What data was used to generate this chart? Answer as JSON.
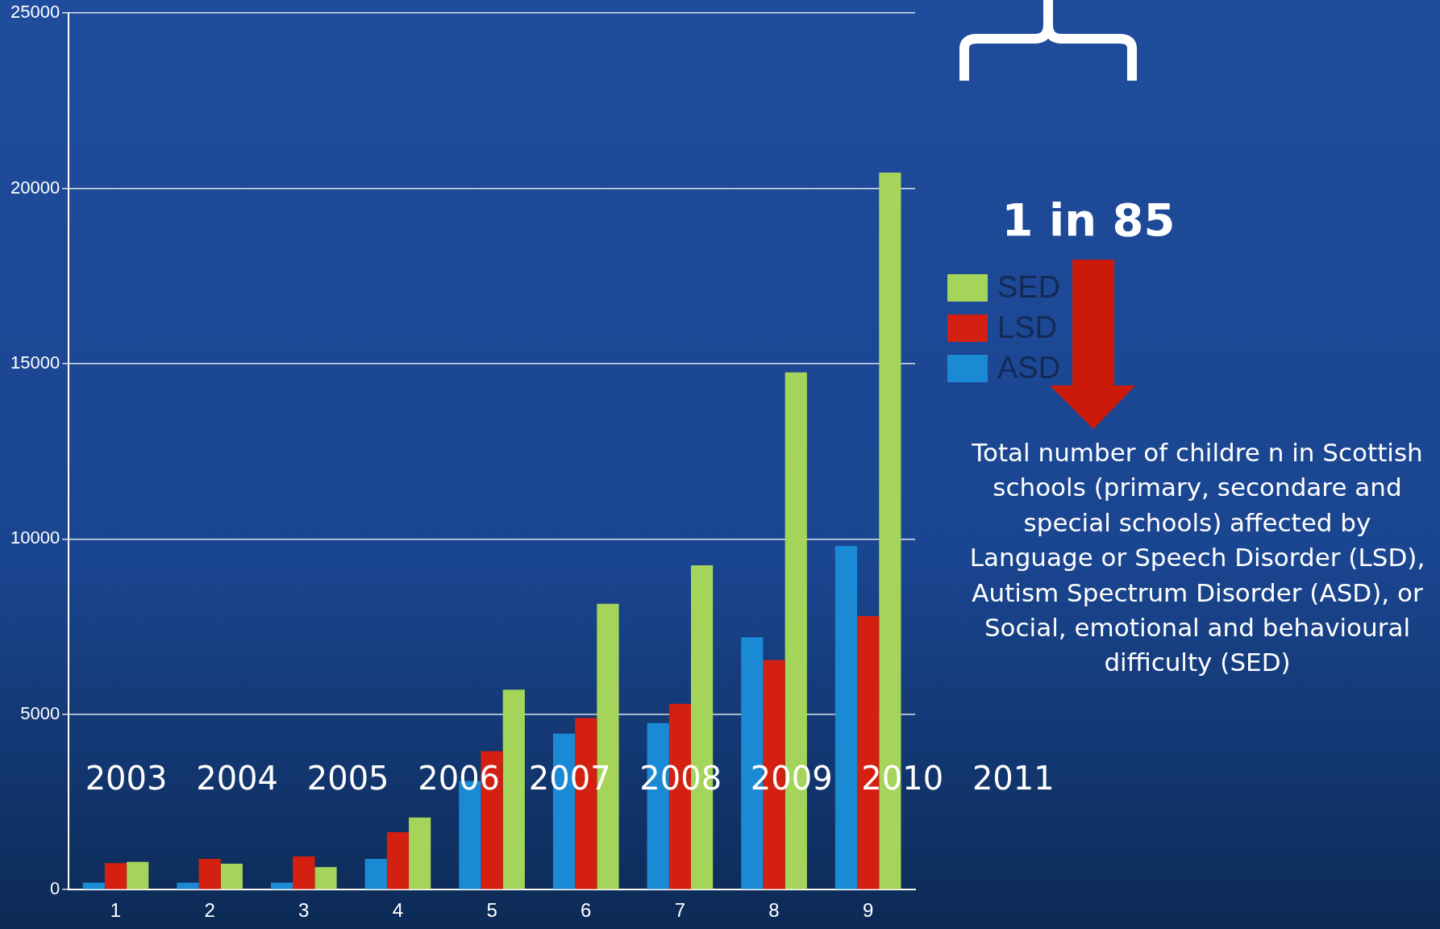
{
  "chart_data": {
    "type": "bar",
    "categories": [
      "1",
      "2",
      "3",
      "4",
      "5",
      "6",
      "7",
      "8",
      "9"
    ],
    "series": [
      {
        "name": "ASD",
        "color": "#1a8ad4",
        "values": [
          200,
          200,
          200,
          880,
          3100,
          4450,
          4750,
          7200,
          9800
        ]
      },
      {
        "name": "LSD",
        "color": "#d42010",
        "values": [
          760,
          880,
          950,
          1640,
          3950,
          4900,
          5300,
          6550,
          7800
        ]
      },
      {
        "name": "SED",
        "color": "#a4d45a",
        "values": [
          790,
          740,
          640,
          2060,
          5700,
          8150,
          9250,
          14750,
          20450
        ]
      }
    ],
    "ylim": [
      0,
      25000
    ],
    "yticks": [
      0,
      5000,
      10000,
      15000,
      20000,
      25000
    ],
    "grid": "y",
    "legend": "right",
    "annotations": [
      "2003",
      "2004",
      "2005",
      "2006",
      "2007",
      "2008",
      "2009",
      "2010",
      "2011",
      "1 in 85",
      "Total number of childre n in Scottish schools (primary, secondare and special schools) affected by Language or Speech Disorder (LSD), Autism Spectrum Disorder (ASD), or Social, emotional and behavioural difficulty (SED)"
    ]
  }
}
